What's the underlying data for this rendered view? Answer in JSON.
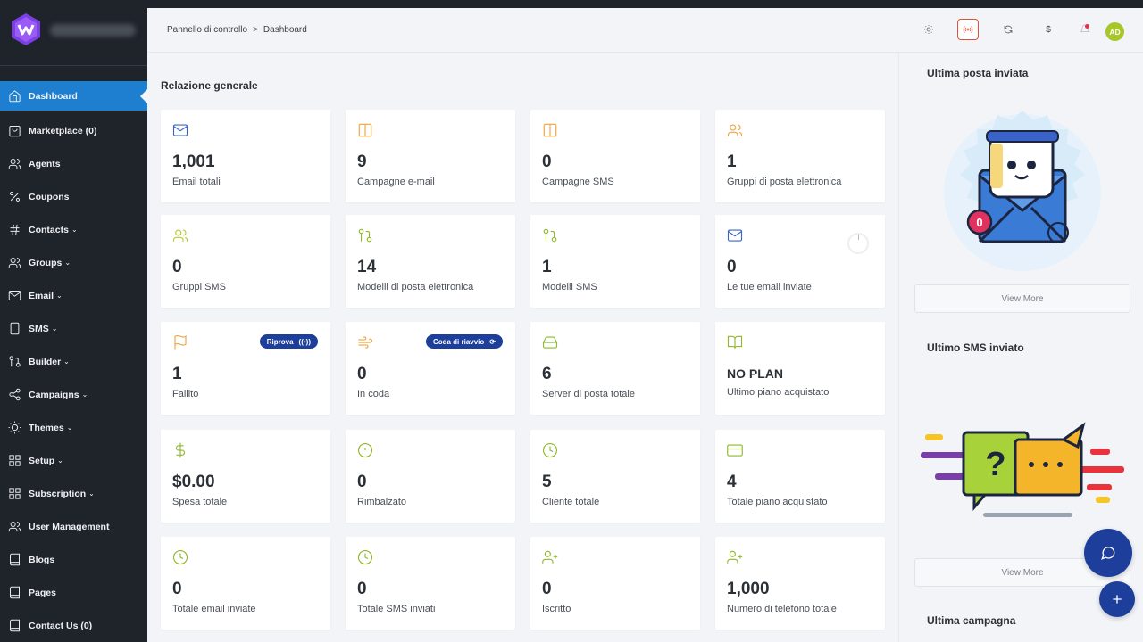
{
  "sidebar": {
    "items": [
      {
        "label": "Dashboard",
        "icon": "home-icon",
        "chevron": ""
      },
      {
        "label": "Marketplace (0)",
        "icon": "bag-icon",
        "chevron": ""
      },
      {
        "label": "Agents",
        "icon": "users-icon",
        "chevron": ""
      },
      {
        "label": "Coupons",
        "icon": "percent-icon",
        "chevron": ""
      },
      {
        "label": "Contacts",
        "icon": "hash-icon",
        "chevron": "⌄"
      },
      {
        "label": "Groups",
        "icon": "users-icon",
        "chevron": "⌄"
      },
      {
        "label": "Email",
        "icon": "mail-icon",
        "chevron": "⌄"
      },
      {
        "label": "SMS",
        "icon": "phone-icon",
        "chevron": "⌄"
      },
      {
        "label": "Builder",
        "icon": "git-pull-icon",
        "chevron": "⌄"
      },
      {
        "label": "Campaigns",
        "icon": "share-icon",
        "chevron": "⌄"
      },
      {
        "label": "Themes",
        "icon": "sun-icon",
        "chevron": "⌄"
      },
      {
        "label": "Setup",
        "icon": "grid-icon",
        "chevron": "⌄"
      },
      {
        "label": "Subscription",
        "icon": "grid-icon",
        "chevron": "⌄"
      },
      {
        "label": "User Management",
        "icon": "users-icon",
        "chevron": ""
      },
      {
        "label": "Blogs",
        "icon": "book-icon",
        "chevron": ""
      },
      {
        "label": "Pages",
        "icon": "book-icon",
        "chevron": ""
      },
      {
        "label": "Contact Us (0)",
        "icon": "book-icon",
        "chevron": ""
      }
    ]
  },
  "header": {
    "breadcrumb_root": "Pannello di controllo",
    "breadcrumb_sep": ">",
    "breadcrumb_current": "Dashboard",
    "currency_symbol": "$",
    "avatar_initials": "AD"
  },
  "main": {
    "section_title": "Relazione generale",
    "cards": [
      {
        "value": "1,001",
        "label": "Email totali",
        "icon": "mail-icon",
        "color": "#3a63c9"
      },
      {
        "value": "9",
        "label": "Campagne e-mail",
        "icon": "columns-icon",
        "color": "#f0a23a"
      },
      {
        "value": "0",
        "label": "Campagne SMS",
        "icon": "columns-icon",
        "color": "#f0a23a"
      },
      {
        "value": "1",
        "label": "Gruppi di posta elettronica",
        "icon": "users-icon",
        "color": "#f0a23a"
      },
      {
        "value": "0",
        "label": "Gruppi SMS",
        "icon": "users-icon",
        "color": "#b8c92a"
      },
      {
        "value": "14",
        "label": "Modelli di posta elettronica",
        "icon": "git-pull-icon",
        "color": "#8fb82a"
      },
      {
        "value": "1",
        "label": "Modelli SMS",
        "icon": "git-pull-icon",
        "color": "#8fb82a"
      },
      {
        "value": "0",
        "label": "Le tue email inviate",
        "icon": "mail-icon",
        "color": "#3a63c9"
      },
      {
        "value": "1",
        "label": "Fallito",
        "icon": "flag-icon",
        "color": "#f0a23a",
        "pill": "Riprova",
        "pill_icon": "((•))"
      },
      {
        "value": "0",
        "label": "In coda",
        "icon": "wind-icon",
        "color": "#f0a23a",
        "pill": "Coda di riavvio",
        "pill_icon": "⟳"
      },
      {
        "value": "6",
        "label": "Server di posta totale",
        "icon": "hdd-icon",
        "color": "#8fb82a"
      },
      {
        "value": "NO PLAN",
        "label": "Ultimo piano acquistato",
        "icon": "book-open-icon",
        "color": "#8fb82a"
      },
      {
        "value": "$0.00",
        "label": "Spesa totale",
        "icon": "dollar-icon",
        "color": "#8fb82a"
      },
      {
        "value": "0",
        "label": "Rimbalzato",
        "icon": "alert-circle-icon",
        "color": "#8fb82a"
      },
      {
        "value": "5",
        "label": "Cliente totale",
        "icon": "clock-icon",
        "color": "#8fb82a"
      },
      {
        "value": "4",
        "label": "Totale piano acquistato",
        "icon": "credit-card-icon",
        "color": "#8fb82a"
      },
      {
        "value": "0",
        "label": "Totale email inviate",
        "icon": "clock-icon",
        "color": "#8fb82a"
      },
      {
        "value": "0",
        "label": "Totale SMS inviati",
        "icon": "clock-icon",
        "color": "#8fb82a"
      },
      {
        "value": "0",
        "label": "Iscritto",
        "icon": "user-plus-icon",
        "color": "#8fb82a"
      },
      {
        "value": "1,000",
        "label": "Numero di telefono totale",
        "icon": "user-plus-icon",
        "color": "#8fb82a"
      }
    ]
  },
  "right_panel": {
    "last_mail_title": "Ultima posta inviata",
    "mail_badge": "0",
    "view_more_1": "View More",
    "last_sms_title": "Ultimo SMS inviato",
    "view_more_2": "View More",
    "last_campaign_title": "Ultima campagna"
  },
  "colors": {
    "sidebar_bg": "#1f232a",
    "active": "#1e7fd0",
    "accent": "#1d3f9b",
    "bg": "#f2f4f7"
  }
}
